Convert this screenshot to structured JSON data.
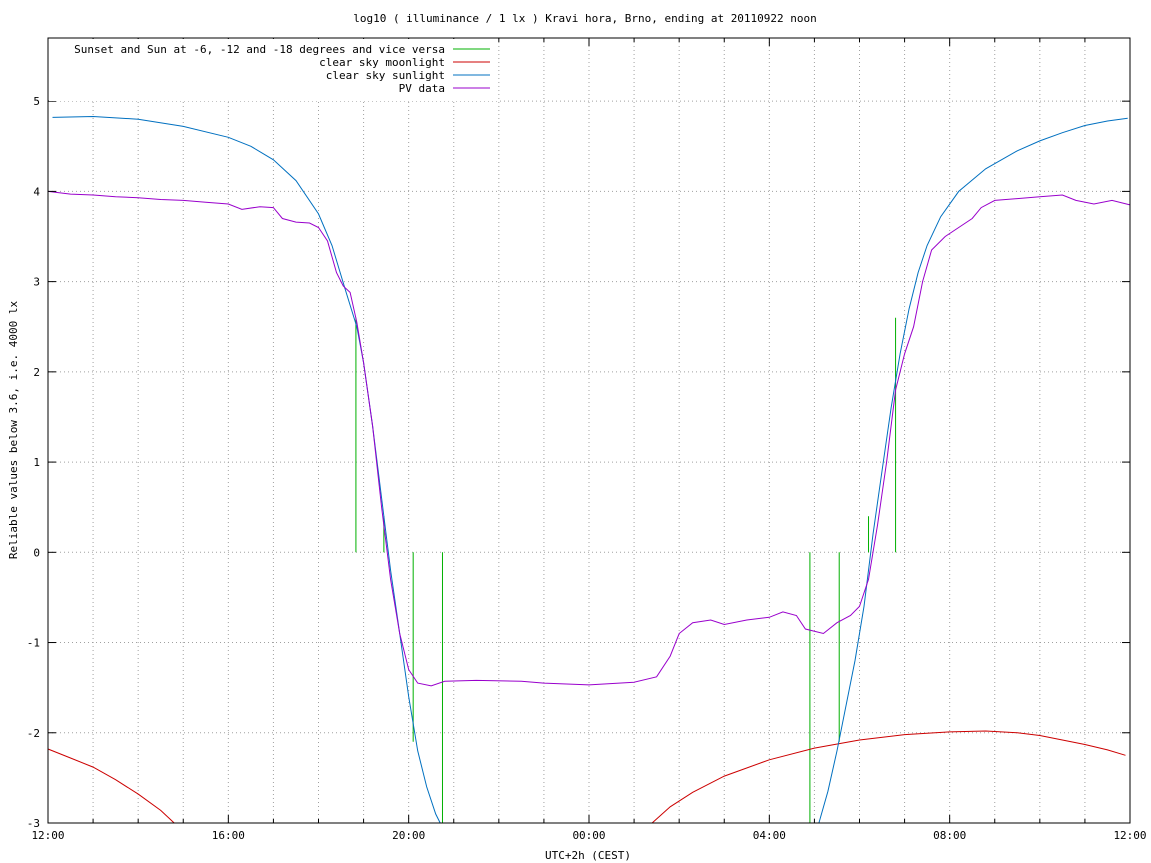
{
  "chart_data": {
    "type": "line",
    "title": "log10 ( illuminance / 1 lx ) Kravi hora, Brno, ending at 20110922 noon",
    "xlabel": "UTC+2h (CEST)",
    "ylabel": "Reliable values below 3.6, i.e. 4000 lx",
    "x_unit": "hour of day",
    "xlim": [
      12,
      36
    ],
    "ylim": [
      -3,
      5.7
    ],
    "grid": true,
    "legend_position": "top-left",
    "x_ticks": [
      {
        "value": 12,
        "label": "12:00"
      },
      {
        "value": 16,
        "label": "16:00"
      },
      {
        "value": 20,
        "label": "20:00"
      },
      {
        "value": 24,
        "label": "00:00"
      },
      {
        "value": 28,
        "label": "04:00"
      },
      {
        "value": 32,
        "label": "08:00"
      },
      {
        "value": 36,
        "label": "12:00"
      }
    ],
    "y_ticks": [
      {
        "value": 5,
        "label": "5"
      },
      {
        "value": 4,
        "label": "4"
      },
      {
        "value": 3,
        "label": "3"
      },
      {
        "value": 2,
        "label": "2"
      },
      {
        "value": 1,
        "label": "1"
      },
      {
        "value": 0,
        "label": "0"
      },
      {
        "value": -1,
        "label": "-1"
      },
      {
        "value": -2,
        "label": "-2"
      },
      {
        "value": -3,
        "label": "-3"
      }
    ],
    "series": [
      {
        "name": "Sunset and Sun at -6, -12 and -18 degrees and vice versa",
        "color": "#00b000",
        "kind": "vertical-markers",
        "markers": [
          {
            "x": 18.83,
            "y_top": 2.6,
            "y_bottom": 0
          },
          {
            "x": 19.45,
            "y_top": 0.4,
            "y_bottom": 0
          },
          {
            "x": 20.1,
            "y_top": 0,
            "y_bottom": -2.1
          },
          {
            "x": 20.75,
            "y_top": 0,
            "y_bottom": -3
          },
          {
            "x": 28.9,
            "y_top": 0,
            "y_bottom": -3
          },
          {
            "x": 29.55,
            "y_top": 0,
            "y_bottom": -2.1
          },
          {
            "x": 30.2,
            "y_top": 0.4,
            "y_bottom": 0
          },
          {
            "x": 30.8,
            "y_top": 2.6,
            "y_bottom": 0
          }
        ]
      },
      {
        "name": "clear sky moonlight",
        "color": "#cc0000",
        "points": [
          [
            12.0,
            -2.18
          ],
          [
            12.5,
            -2.28
          ],
          [
            13.0,
            -2.38
          ],
          [
            13.5,
            -2.52
          ],
          [
            14.0,
            -2.68
          ],
          [
            14.5,
            -2.86
          ],
          [
            14.8,
            -3.0
          ],
          [
            25.4,
            -3.0
          ],
          [
            25.8,
            -2.82
          ],
          [
            26.3,
            -2.66
          ],
          [
            27.0,
            -2.48
          ],
          [
            28.0,
            -2.3
          ],
          [
            29.0,
            -2.17
          ],
          [
            30.0,
            -2.08
          ],
          [
            31.0,
            -2.02
          ],
          [
            32.0,
            -1.99
          ],
          [
            32.8,
            -1.98
          ],
          [
            33.5,
            -2.0
          ],
          [
            34.0,
            -2.03
          ],
          [
            34.5,
            -2.08
          ],
          [
            35.0,
            -2.13
          ],
          [
            35.5,
            -2.19
          ],
          [
            35.9,
            -2.25
          ]
        ]
      },
      {
        "name": "clear sky sunlight",
        "color": "#0070c0",
        "points": [
          [
            12.1,
            4.82
          ],
          [
            13.0,
            4.83
          ],
          [
            14.0,
            4.8
          ],
          [
            15.0,
            4.72
          ],
          [
            16.0,
            4.6
          ],
          [
            16.5,
            4.5
          ],
          [
            17.0,
            4.35
          ],
          [
            17.5,
            4.12
          ],
          [
            18.0,
            3.75
          ],
          [
            18.3,
            3.4
          ],
          [
            18.6,
            2.9
          ],
          [
            18.85,
            2.5
          ],
          [
            19.0,
            2.1
          ],
          [
            19.2,
            1.4
          ],
          [
            19.4,
            0.6
          ],
          [
            19.6,
            -0.2
          ],
          [
            19.8,
            -0.9
          ],
          [
            20.0,
            -1.6
          ],
          [
            20.2,
            -2.2
          ],
          [
            20.4,
            -2.6
          ],
          [
            20.6,
            -2.9
          ],
          [
            20.7,
            -3.0
          ],
          [
            29.1,
            -3.0
          ],
          [
            29.3,
            -2.65
          ],
          [
            29.5,
            -2.2
          ],
          [
            29.7,
            -1.7
          ],
          [
            29.9,
            -1.2
          ],
          [
            30.1,
            -0.6
          ],
          [
            30.3,
            0.2
          ],
          [
            30.5,
            0.9
          ],
          [
            30.7,
            1.6
          ],
          [
            30.9,
            2.2
          ],
          [
            31.1,
            2.7
          ],
          [
            31.3,
            3.1
          ],
          [
            31.5,
            3.4
          ],
          [
            31.8,
            3.72
          ],
          [
            32.2,
            4.0
          ],
          [
            32.8,
            4.25
          ],
          [
            33.5,
            4.45
          ],
          [
            34.0,
            4.56
          ],
          [
            34.5,
            4.65
          ],
          [
            35.0,
            4.73
          ],
          [
            35.5,
            4.78
          ],
          [
            35.95,
            4.81
          ]
        ]
      },
      {
        "name": "PV data",
        "color": "#9900cc",
        "points": [
          [
            12.0,
            4.0
          ],
          [
            12.5,
            3.97
          ],
          [
            13.0,
            3.96
          ],
          [
            13.5,
            3.94
          ],
          [
            14.0,
            3.93
          ],
          [
            14.5,
            3.91
          ],
          [
            15.0,
            3.9
          ],
          [
            15.5,
            3.88
          ],
          [
            16.0,
            3.86
          ],
          [
            16.3,
            3.8
          ],
          [
            16.7,
            3.83
          ],
          [
            17.0,
            3.82
          ],
          [
            17.2,
            3.7
          ],
          [
            17.5,
            3.66
          ],
          [
            17.8,
            3.65
          ],
          [
            18.0,
            3.6
          ],
          [
            18.2,
            3.45
          ],
          [
            18.4,
            3.1
          ],
          [
            18.55,
            2.95
          ],
          [
            18.7,
            2.88
          ],
          [
            18.85,
            2.55
          ],
          [
            19.0,
            2.1
          ],
          [
            19.2,
            1.4
          ],
          [
            19.4,
            0.5
          ],
          [
            19.6,
            -0.3
          ],
          [
            19.8,
            -0.9
          ],
          [
            20.0,
            -1.3
          ],
          [
            20.2,
            -1.45
          ],
          [
            20.5,
            -1.48
          ],
          [
            20.8,
            -1.43
          ],
          [
            21.5,
            -1.42
          ],
          [
            22.5,
            -1.43
          ],
          [
            23.0,
            -1.45
          ],
          [
            24.0,
            -1.47
          ],
          [
            25.0,
            -1.44
          ],
          [
            25.5,
            -1.38
          ],
          [
            25.8,
            -1.15
          ],
          [
            26.0,
            -0.9
          ],
          [
            26.3,
            -0.78
          ],
          [
            26.7,
            -0.75
          ],
          [
            27.0,
            -0.8
          ],
          [
            27.5,
            -0.75
          ],
          [
            28.0,
            -0.72
          ],
          [
            28.3,
            -0.66
          ],
          [
            28.6,
            -0.7
          ],
          [
            28.8,
            -0.85
          ],
          [
            29.2,
            -0.9
          ],
          [
            29.5,
            -0.78
          ],
          [
            29.8,
            -0.7
          ],
          [
            30.0,
            -0.6
          ],
          [
            30.2,
            -0.3
          ],
          [
            30.4,
            0.3
          ],
          [
            30.6,
            1.0
          ],
          [
            30.8,
            1.8
          ],
          [
            31.0,
            2.2
          ],
          [
            31.2,
            2.5
          ],
          [
            31.4,
            3.0
          ],
          [
            31.6,
            3.35
          ],
          [
            31.9,
            3.5
          ],
          [
            32.2,
            3.6
          ],
          [
            32.5,
            3.7
          ],
          [
            32.7,
            3.82
          ],
          [
            33.0,
            3.9
          ],
          [
            33.5,
            3.92
          ],
          [
            34.0,
            3.94
          ],
          [
            34.5,
            3.96
          ],
          [
            34.8,
            3.9
          ],
          [
            35.2,
            3.86
          ],
          [
            35.6,
            3.9
          ],
          [
            36.0,
            3.85
          ]
        ]
      }
    ]
  }
}
